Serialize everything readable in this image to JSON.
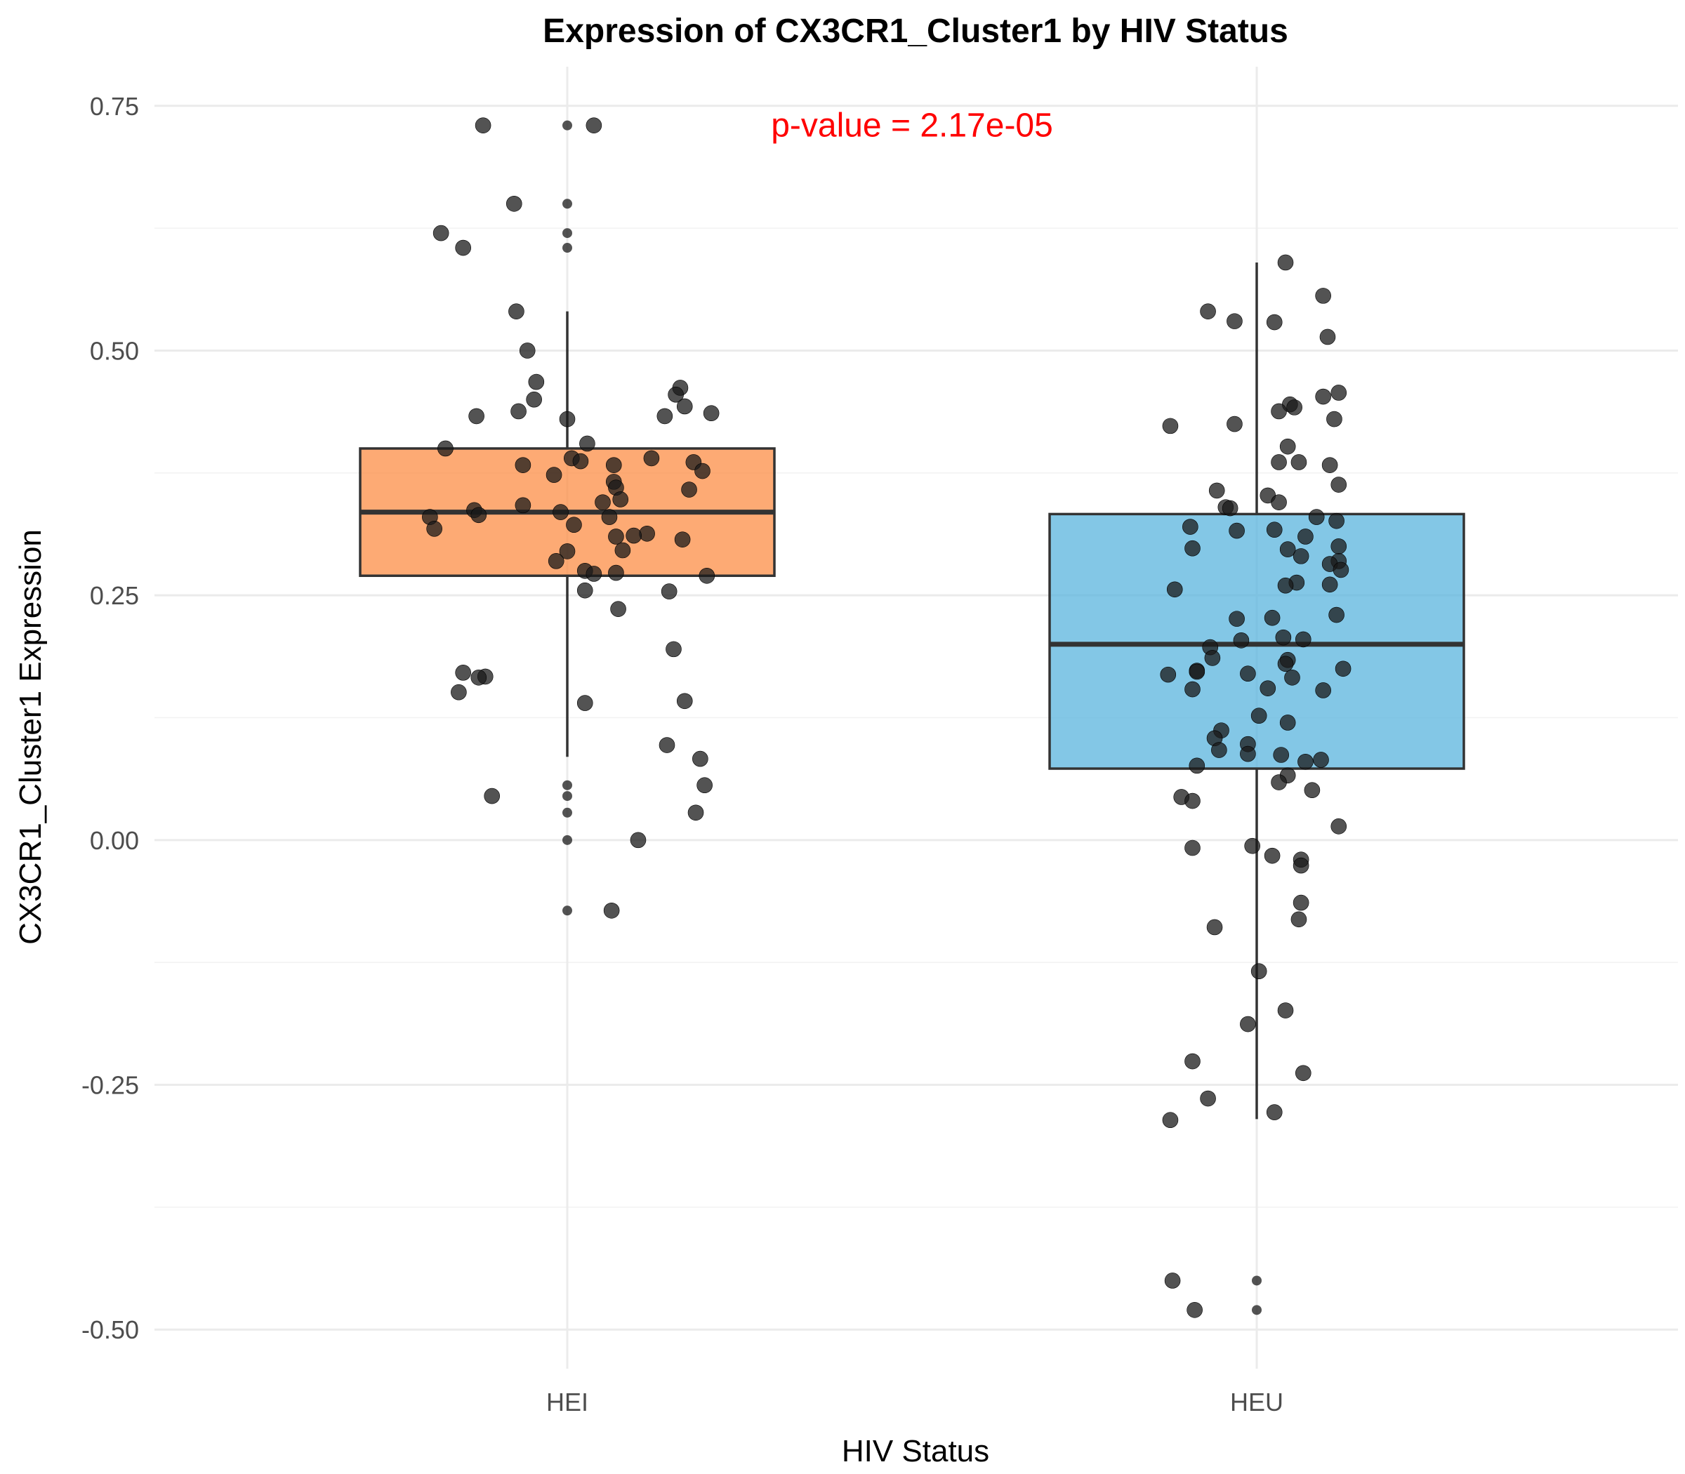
{
  "chart_data": {
    "type": "box",
    "title": "Expression of CX3CR1_Cluster1 by HIV Status",
    "xlabel": "HIV Status",
    "ylabel": "CX3CR1_Cluster1 Expression",
    "categories": [
      "HEI",
      "HEU"
    ],
    "ylim": [
      -0.54,
      0.79
    ],
    "yticks": [
      -0.5,
      -0.25,
      0.0,
      0.25,
      0.5,
      0.75
    ],
    "ytick_labels": [
      "-0.50",
      "-0.25",
      "0.00",
      "0.25",
      "0.50",
      "0.75"
    ],
    "grid": true,
    "annotation": {
      "text": "p-value = 2.17e-05",
      "x_category_pos": 1.5,
      "y": 0.73,
      "color": "#ff0000"
    },
    "boxes": [
      {
        "category": "HEI",
        "q1": 0.27,
        "median": 0.335,
        "q3": 0.4,
        "whisker_low": 0.085,
        "whisker_high": 0.54,
        "color": "#fc8d45",
        "outliers": [
          0.73,
          0.65,
          0.62,
          0.605,
          0.056,
          0.045,
          0.028,
          0.0,
          -0.072
        ]
      },
      {
        "category": "HEU",
        "q1": 0.073,
        "median": 0.2,
        "q3": 0.333,
        "whisker_low": -0.285,
        "whisker_high": 0.59,
        "color": "#5ab4de",
        "outliers": [
          -0.45,
          -0.48
        ]
      }
    ],
    "points": [
      {
        "category": "HEI",
        "jitter": [
          0.73,
          0.73,
          0.65,
          0.62,
          0.605,
          0.54,
          0.5,
          0.468,
          0.45,
          0.438,
          0.433,
          0.462,
          0.455,
          0.443,
          0.436,
          0.433,
          0.43,
          0.405,
          0.4,
          0.39,
          0.39,
          0.386,
          0.387,
          0.383,
          0.383,
          0.377,
          0.373,
          0.366,
          0.36,
          0.358,
          0.348,
          0.345,
          0.342,
          0.337,
          0.335,
          0.332,
          0.33,
          0.33,
          0.322,
          0.318,
          0.313,
          0.311,
          0.31,
          0.307,
          0.296,
          0.295,
          0.285,
          0.275,
          0.273,
          0.272,
          0.27,
          0.255,
          0.254,
          0.236,
          0.195,
          0.171,
          0.167,
          0.166,
          0.151,
          0.142,
          0.14,
          0.097,
          0.083,
          0.056,
          0.045,
          0.028,
          0.0,
          -0.072
        ],
        "offsets": [
          0.12,
          -0.38,
          -0.24,
          -0.57,
          -0.47,
          -0.23,
          -0.18,
          -0.14,
          -0.15,
          -0.22,
          -0.41,
          0.51,
          0.49,
          0.53,
          0.65,
          0.44,
          0.0,
          0.09,
          -0.55,
          0.38,
          0.02,
          0.57,
          0.06,
          -0.2,
          0.21,
          0.61,
          -0.06,
          0.21,
          0.22,
          0.55,
          0.24,
          0.16,
          -0.2,
          -0.42,
          -0.03,
          -0.4,
          -0.62,
          0.19,
          0.03,
          -0.6,
          0.36,
          0.3,
          0.22,
          0.52,
          0.25,
          0.0,
          -0.05,
          0.08,
          0.22,
          0.12,
          0.63,
          0.08,
          0.46,
          0.23,
          0.48,
          -0.47,
          -0.37,
          -0.4,
          -0.49,
          0.53,
          0.08,
          0.45,
          0.6,
          0.62,
          -0.34,
          0.58,
          0.32,
          0.2
        ]
      },
      {
        "category": "HEU",
        "jitter": [
          0.59,
          0.556,
          0.54,
          0.53,
          0.529,
          0.514,
          0.457,
          0.453,
          0.445,
          0.442,
          0.438,
          0.43,
          0.425,
          0.423,
          0.402,
          0.386,
          0.386,
          0.383,
          0.363,
          0.357,
          0.352,
          0.345,
          0.34,
          0.339,
          0.33,
          0.326,
          0.32,
          0.317,
          0.316,
          0.31,
          0.3,
          0.298,
          0.297,
          0.29,
          0.285,
          0.282,
          0.276,
          0.263,
          0.261,
          0.26,
          0.256,
          0.23,
          0.227,
          0.226,
          0.207,
          0.205,
          0.204,
          0.197,
          0.186,
          0.184,
          0.18,
          0.175,
          0.173,
          0.172,
          0.17,
          0.169,
          0.166,
          0.155,
          0.154,
          0.153,
          0.127,
          0.12,
          0.112,
          0.104,
          0.098,
          0.092,
          0.088,
          0.087,
          0.082,
          0.08,
          0.076,
          0.066,
          0.059,
          0.051,
          0.044,
          0.04,
          0.014,
          -0.008,
          -0.006,
          -0.016,
          -0.02,
          -0.026,
          -0.064,
          -0.081,
          -0.089,
          -0.134,
          -0.174,
          -0.188,
          -0.226,
          -0.238,
          -0.264,
          -0.278,
          -0.286,
          -0.45,
          -0.48
        ],
        "offsets": [
          0.13,
          0.3,
          -0.22,
          -0.1,
          0.08,
          0.32,
          0.37,
          0.3,
          0.15,
          0.17,
          0.1,
          0.35,
          -0.1,
          -0.39,
          0.14,
          0.1,
          0.19,
          0.33,
          0.37,
          -0.18,
          0.05,
          0.1,
          -0.14,
          -0.12,
          0.27,
          0.36,
          -0.3,
          0.08,
          -0.09,
          0.22,
          0.37,
          -0.29,
          0.14,
          0.2,
          0.37,
          0.33,
          0.38,
          0.18,
          0.33,
          0.13,
          -0.37,
          0.36,
          0.07,
          -0.09,
          0.12,
          0.21,
          -0.07,
          -0.21,
          -0.2,
          0.14,
          0.13,
          0.39,
          -0.27,
          -0.27,
          -0.04,
          -0.4,
          0.16,
          0.05,
          -0.29,
          0.3,
          0.01,
          0.14,
          -0.16,
          -0.19,
          -0.04,
          -0.17,
          -0.04,
          0.11,
          0.29,
          0.22,
          -0.27,
          0.14,
          0.1,
          0.25,
          -0.34,
          -0.29,
          0.37,
          -0.29,
          -0.02,
          0.07,
          0.2,
          0.2,
          0.2,
          0.19,
          -0.19,
          0.01,
          0.13,
          -0.04,
          -0.29,
          0.21,
          -0.22,
          0.08,
          -0.39,
          -0.38,
          -0.28
        ]
      }
    ]
  }
}
